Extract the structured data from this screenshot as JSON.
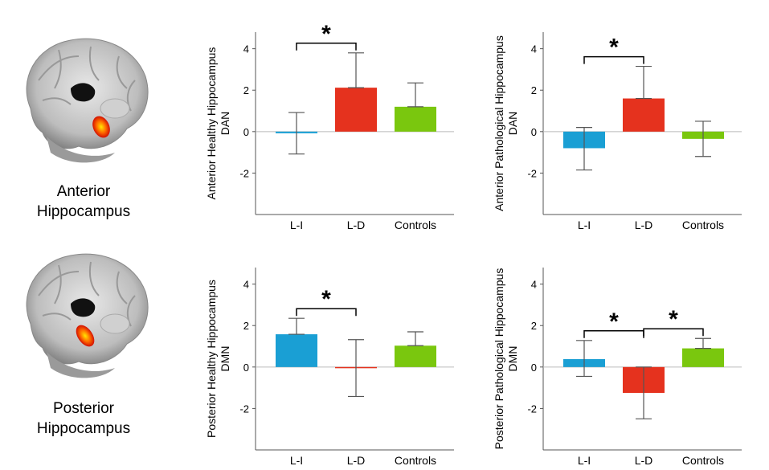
{
  "colors": {
    "li": "#1a9fd4",
    "ld": "#e5321e",
    "controls": "#7ac70e"
  },
  "brains": [
    {
      "caption_line1": "Anterior",
      "caption_line2": "Hippocampus"
    },
    {
      "caption_line1": "Posterior",
      "caption_line2": "Hippocampus"
    }
  ],
  "chart_data": [
    {
      "type": "bar",
      "ylabel_line1": "Anterior Healthy Hippocampus",
      "ylabel_line2": "DAN",
      "categories": [
        "L-I",
        "L-D",
        "Controls"
      ],
      "values": [
        -0.08,
        2.12,
        1.2
      ],
      "error_upper": [
        0.92,
        3.8,
        2.35
      ],
      "error_lower": [
        -1.08,
        2.12,
        1.2
      ],
      "ylim": [
        -4,
        4.8
      ],
      "yticks": [
        4,
        2,
        0,
        -2
      ],
      "yticklabels": [
        "4",
        "2",
        "0",
        "-2"
      ],
      "significance": [
        {
          "from": 0,
          "to": 1,
          "label": "*"
        }
      ]
    },
    {
      "type": "bar",
      "ylabel_line1": "Anterior Pathological Hippocampus",
      "ylabel_line2": "DAN",
      "categories": [
        "L-I",
        "L-D",
        "Controls"
      ],
      "values": [
        -0.8,
        1.6,
        -0.35
      ],
      "error_upper": [
        0.2,
        3.15,
        0.5
      ],
      "error_lower": [
        -1.85,
        1.6,
        -1.2
      ],
      "ylim": [
        -4,
        4.8
      ],
      "yticks": [
        4,
        2,
        0,
        -2
      ],
      "yticklabels": [
        "4",
        "2",
        "0",
        "-2"
      ],
      "significance": [
        {
          "from": 0,
          "to": 1,
          "label": "*"
        }
      ]
    },
    {
      "type": "bar",
      "ylabel_line1": "Posterior Healthy Hippocampus",
      "ylabel_line2": "DMN",
      "categories": [
        "L-I",
        "L-D",
        "Controls"
      ],
      "values": [
        1.58,
        -0.05,
        1.03
      ],
      "error_upper": [
        2.35,
        1.32,
        1.7
      ],
      "error_lower": [
        1.58,
        -1.42,
        1.03
      ],
      "ylim": [
        -4,
        4.8
      ],
      "yticks": [
        4,
        2,
        0,
        -2
      ],
      "yticklabels": [
        "4",
        "2",
        "0",
        "-2"
      ],
      "significance": [
        {
          "from": 0,
          "to": 1,
          "label": "*"
        }
      ]
    },
    {
      "type": "bar",
      "ylabel_line1": "Posterior Pathological Hippocampus",
      "ylabel_line2": "DMN",
      "categories": [
        "L-I",
        "L-D",
        "Controls"
      ],
      "values": [
        0.38,
        -1.25,
        0.9
      ],
      "error_upper": [
        1.28,
        0.0,
        1.38
      ],
      "error_lower": [
        -0.45,
        -2.5,
        0.9
      ],
      "ylim": [
        -4,
        4.8
      ],
      "yticks": [
        4,
        2,
        0,
        -2
      ],
      "yticklabels": [
        "4",
        "2",
        "0",
        "-2"
      ],
      "significance": [
        {
          "from": 0,
          "to": 1,
          "label": "*"
        },
        {
          "from": 1,
          "to": 2,
          "label": "*"
        }
      ]
    }
  ]
}
